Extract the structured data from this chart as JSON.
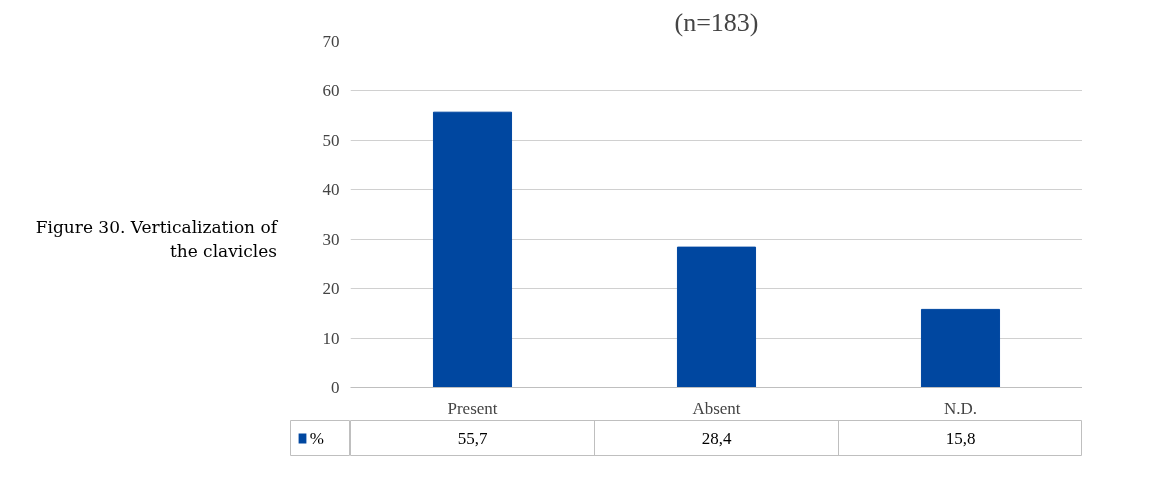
{
  "chart_data": {
    "type": "bar",
    "title": "(n=183)",
    "annotations": [
      "Figure 30. Verticalization of the clavicles"
    ],
    "categories": [
      "Present",
      "Absent",
      "N.D."
    ],
    "series": [
      {
        "name": "%",
        "color": "#0047a0",
        "values": [
          55.7,
          28.4,
          15.8
        ],
        "value_labels": [
          "55,7",
          "28,4",
          "15,8"
        ]
      }
    ],
    "ylim": [
      0,
      70
    ],
    "yticks": [
      0,
      10,
      20,
      30,
      40,
      50,
      60,
      70
    ],
    "grid": "y",
    "legend": "bottom"
  }
}
